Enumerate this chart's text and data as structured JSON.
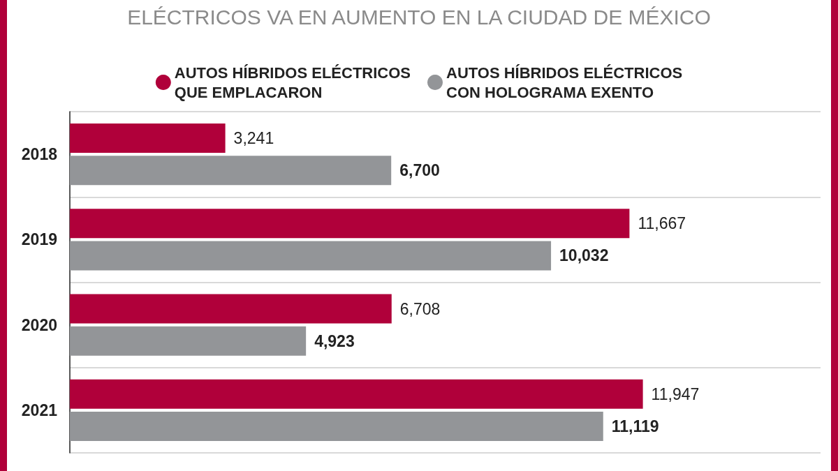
{
  "chart_data": {
    "type": "bar",
    "orientation": "horizontal",
    "title": "ELÉCTRICOS VA EN AUMENTO EN LA CIUDAD DE MÉXICO",
    "categories": [
      "2018",
      "2019",
      "2020",
      "2021"
    ],
    "series": [
      {
        "name": "AUTOS HÍBRIDOS ELÉCTRICOS\nQUE EMPLACARON",
        "color": "#b0003a",
        "values": [
          3241,
          11667,
          6708,
          11947
        ],
        "value_labels": [
          "3,241",
          "11,667",
          "6,708",
          "11,947"
        ]
      },
      {
        "name": "AUTOS HÍBRIDOS ELÉCTRICOS\nCON HOLOGRAMA EXENTO",
        "color": "#939598",
        "values": [
          6700,
          10032,
          4923,
          11119
        ],
        "value_labels": [
          "6,700",
          "10,032",
          "4,923",
          "11,119"
        ]
      }
    ],
    "grid": "y",
    "legend": "top"
  }
}
